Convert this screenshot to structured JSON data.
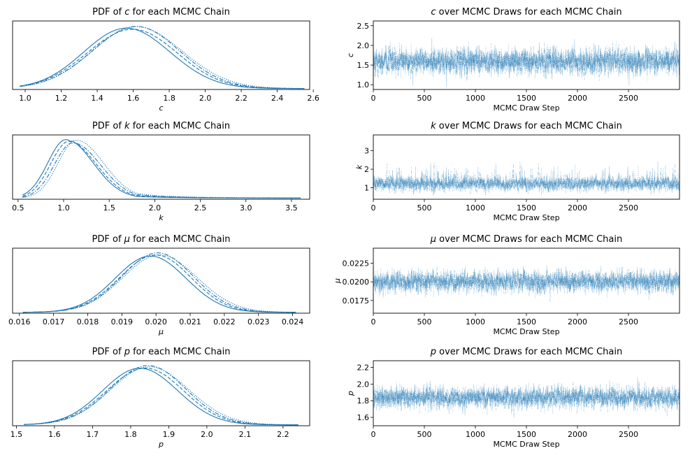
{
  "figure": {
    "type": "MCMC trace plot",
    "chain_count": 4
  },
  "chart_data": [
    {
      "type": "line",
      "name": "pdf-c",
      "title": "PDF of c for each MCMC Chain",
      "title_parts": [
        "PDF of ",
        "c",
        " for each MCMC Chain"
      ],
      "xlabel": "c",
      "ylabel": "",
      "xlim": [
        0.93,
        2.58
      ],
      "ylim": [
        0,
        1.07
      ],
      "xticks": [
        1.0,
        1.2,
        1.4,
        1.6,
        1.8,
        2.0,
        2.2,
        2.4,
        2.6
      ],
      "xtick_labels": [
        "1.0",
        "1.2",
        "1.4",
        "1.6",
        "1.8",
        "2.0",
        "2.2",
        "2.4",
        "2.6"
      ],
      "yticks": [],
      "kde": {
        "mean": 1.6,
        "sd": 0.245,
        "range": [
          0.97,
          2.55
        ]
      },
      "chain_styles": [
        "solid",
        "dashed",
        "dashdot",
        "dotted"
      ],
      "color": "#1f77b4"
    },
    {
      "type": "line",
      "name": "trace-c",
      "title": "c over MCMC Draws for each MCMC Chain",
      "title_parts": [
        "",
        "c",
        " over MCMC Draws for each MCMC Chain"
      ],
      "xlabel": "MCMC Draw Step",
      "ylabel": "c",
      "xlim": [
        0,
        3000
      ],
      "ylim": [
        0.88,
        2.62
      ],
      "xticks": [
        0,
        500,
        1000,
        1500,
        2000,
        2500
      ],
      "xtick_labels": [
        "0",
        "500",
        "1000",
        "1500",
        "2000",
        "2500"
      ],
      "yticks": [
        1.0,
        1.5,
        2.0,
        2.5
      ],
      "ytick_labels": [
        "1.0",
        "1.5",
        "2.0",
        "2.5"
      ],
      "trace": {
        "mean": 1.6,
        "sd": 0.23,
        "min": 0.95,
        "max": 2.55,
        "draws": 3000
      },
      "chain_styles": [
        "solid",
        "dashed",
        "dashdot",
        "dotted"
      ],
      "color": "#1f77b4"
    },
    {
      "type": "line",
      "name": "pdf-k",
      "title": "PDF of k for each MCMC Chain",
      "title_parts": [
        "PDF of ",
        "k",
        " for each MCMC Chain"
      ],
      "xlabel": "k",
      "ylabel": "",
      "xlim": [
        0.44,
        3.7
      ],
      "ylim": [
        0,
        1.07
      ],
      "xticks": [
        0.5,
        1.0,
        1.5,
        2.0,
        2.5,
        3.0,
        3.5
      ],
      "xtick_labels": [
        "0.5",
        "1.0",
        "1.5",
        "2.0",
        "2.5",
        "3.0",
        "3.5"
      ],
      "yticks": [],
      "kde": {
        "mode": 1.08,
        "sd_left": 0.2,
        "sd_right": 0.3,
        "range": [
          0.55,
          3.6
        ]
      },
      "chain_styles": [
        "solid",
        "dashed",
        "dashdot",
        "dotted"
      ],
      "color": "#1f77b4"
    },
    {
      "type": "line",
      "name": "trace-k",
      "title": "k over MCMC Draws for each MCMC Chain",
      "title_parts": [
        "",
        "k",
        " over MCMC Draws for each MCMC Chain"
      ],
      "xlabel": "MCMC Draw Step",
      "ylabel": "k",
      "xlim": [
        0,
        3000
      ],
      "ylim": [
        0.38,
        3.85
      ],
      "xticks": [
        0,
        500,
        1000,
        1500,
        2000,
        2500
      ],
      "xtick_labels": [
        "0",
        "500",
        "1000",
        "1500",
        "2000",
        "2500"
      ],
      "yticks": [
        1,
        2,
        3
      ],
      "ytick_labels": [
        "1",
        "2",
        "3"
      ],
      "trace": {
        "mean": 1.2,
        "sd": 0.35,
        "min": 0.55,
        "max": 3.6,
        "draws": 3000,
        "skew": "right"
      },
      "chain_styles": [
        "solid",
        "dashed",
        "dashdot",
        "dotted"
      ],
      "color": "#1f77b4"
    },
    {
      "type": "line",
      "name": "pdf-mu",
      "title": "PDF of μ for each MCMC Chain",
      "title_parts": [
        "PDF of ",
        "μ",
        " for each MCMC Chain"
      ],
      "xlabel": "μ",
      "ylabel": "",
      "xlim": [
        0.0158,
        0.0245
      ],
      "ylim": [
        0,
        1.07
      ],
      "xticks": [
        0.016,
        0.017,
        0.018,
        0.019,
        0.02,
        0.021,
        0.022,
        0.023,
        0.024
      ],
      "xtick_labels": [
        "0.016",
        "0.017",
        "0.018",
        "0.019",
        "0.020",
        "0.021",
        "0.022",
        "0.023",
        "0.024"
      ],
      "yticks": [],
      "kde": {
        "mean": 0.02,
        "sd": 0.00105,
        "range": [
          0.0161,
          0.0241
        ]
      },
      "chain_styles": [
        "solid",
        "dashed",
        "dashdot",
        "dotted"
      ],
      "color": "#1f77b4"
    },
    {
      "type": "line",
      "name": "trace-mu",
      "title": "μ over MCMC Draws for each MCMC Chain",
      "title_parts": [
        "",
        "μ",
        " over MCMC Draws for each MCMC Chain"
      ],
      "xlabel": "MCMC Draw Step",
      "ylabel": "μ",
      "xlim": [
        0,
        3000
      ],
      "ylim": [
        0.0158,
        0.0245
      ],
      "xticks": [
        0,
        500,
        1000,
        1500,
        2000,
        2500
      ],
      "xtick_labels": [
        "0",
        "500",
        "1000",
        "1500",
        "2000",
        "2500"
      ],
      "yticks": [
        0.0175,
        0.02,
        0.0225
      ],
      "ytick_labels": [
        "0.0175",
        "0.0200",
        "0.0225"
      ],
      "trace": {
        "mean": 0.02,
        "sd": 0.001,
        "min": 0.0161,
        "max": 0.0241,
        "draws": 3000
      },
      "chain_styles": [
        "solid",
        "dashed",
        "dashdot",
        "dotted"
      ],
      "color": "#1f77b4"
    },
    {
      "type": "line",
      "name": "pdf-p",
      "title": "PDF of p for each MCMC Chain",
      "title_parts": [
        "PDF of ",
        "p",
        " for each MCMC Chain"
      ],
      "xlabel": "p",
      "ylabel": "",
      "xlim": [
        1.49,
        2.27
      ],
      "ylim": [
        0,
        1.07
      ],
      "xticks": [
        1.5,
        1.6,
        1.7,
        1.8,
        1.9,
        2.0,
        2.1,
        2.2
      ],
      "xtick_labels": [
        "1.5",
        "1.6",
        "1.7",
        "1.8",
        "1.9",
        "2.0",
        "2.1",
        "2.2"
      ],
      "yticks": [],
      "kde": {
        "mean": 1.84,
        "sd": 0.1,
        "range": [
          1.52,
          2.24
        ]
      },
      "chain_styles": [
        "solid",
        "dashed",
        "dashdot",
        "dotted"
      ],
      "color": "#1f77b4"
    },
    {
      "type": "line",
      "name": "trace-p",
      "title": "p over MCMC Draws for each MCMC Chain",
      "title_parts": [
        "",
        "p",
        " over MCMC Draws for each MCMC Chain"
      ],
      "xlabel": "MCMC Draw Step",
      "ylabel": "p",
      "xlim": [
        0,
        3000
      ],
      "ylim": [
        1.5,
        2.28
      ],
      "xticks": [
        0,
        500,
        1000,
        1500,
        2000,
        2500
      ],
      "xtick_labels": [
        "0",
        "500",
        "1000",
        "1500",
        "2000",
        "2500"
      ],
      "yticks": [
        1.6,
        1.8,
        2.0,
        2.2
      ],
      "ytick_labels": [
        "1.6",
        "1.8",
        "2.0",
        "2.2"
      ],
      "trace": {
        "mean": 1.84,
        "sd": 0.09,
        "min": 1.53,
        "max": 2.24,
        "draws": 3000
      },
      "chain_styles": [
        "solid",
        "dashed",
        "dashdot",
        "dotted"
      ],
      "color": "#1f77b4"
    }
  ]
}
